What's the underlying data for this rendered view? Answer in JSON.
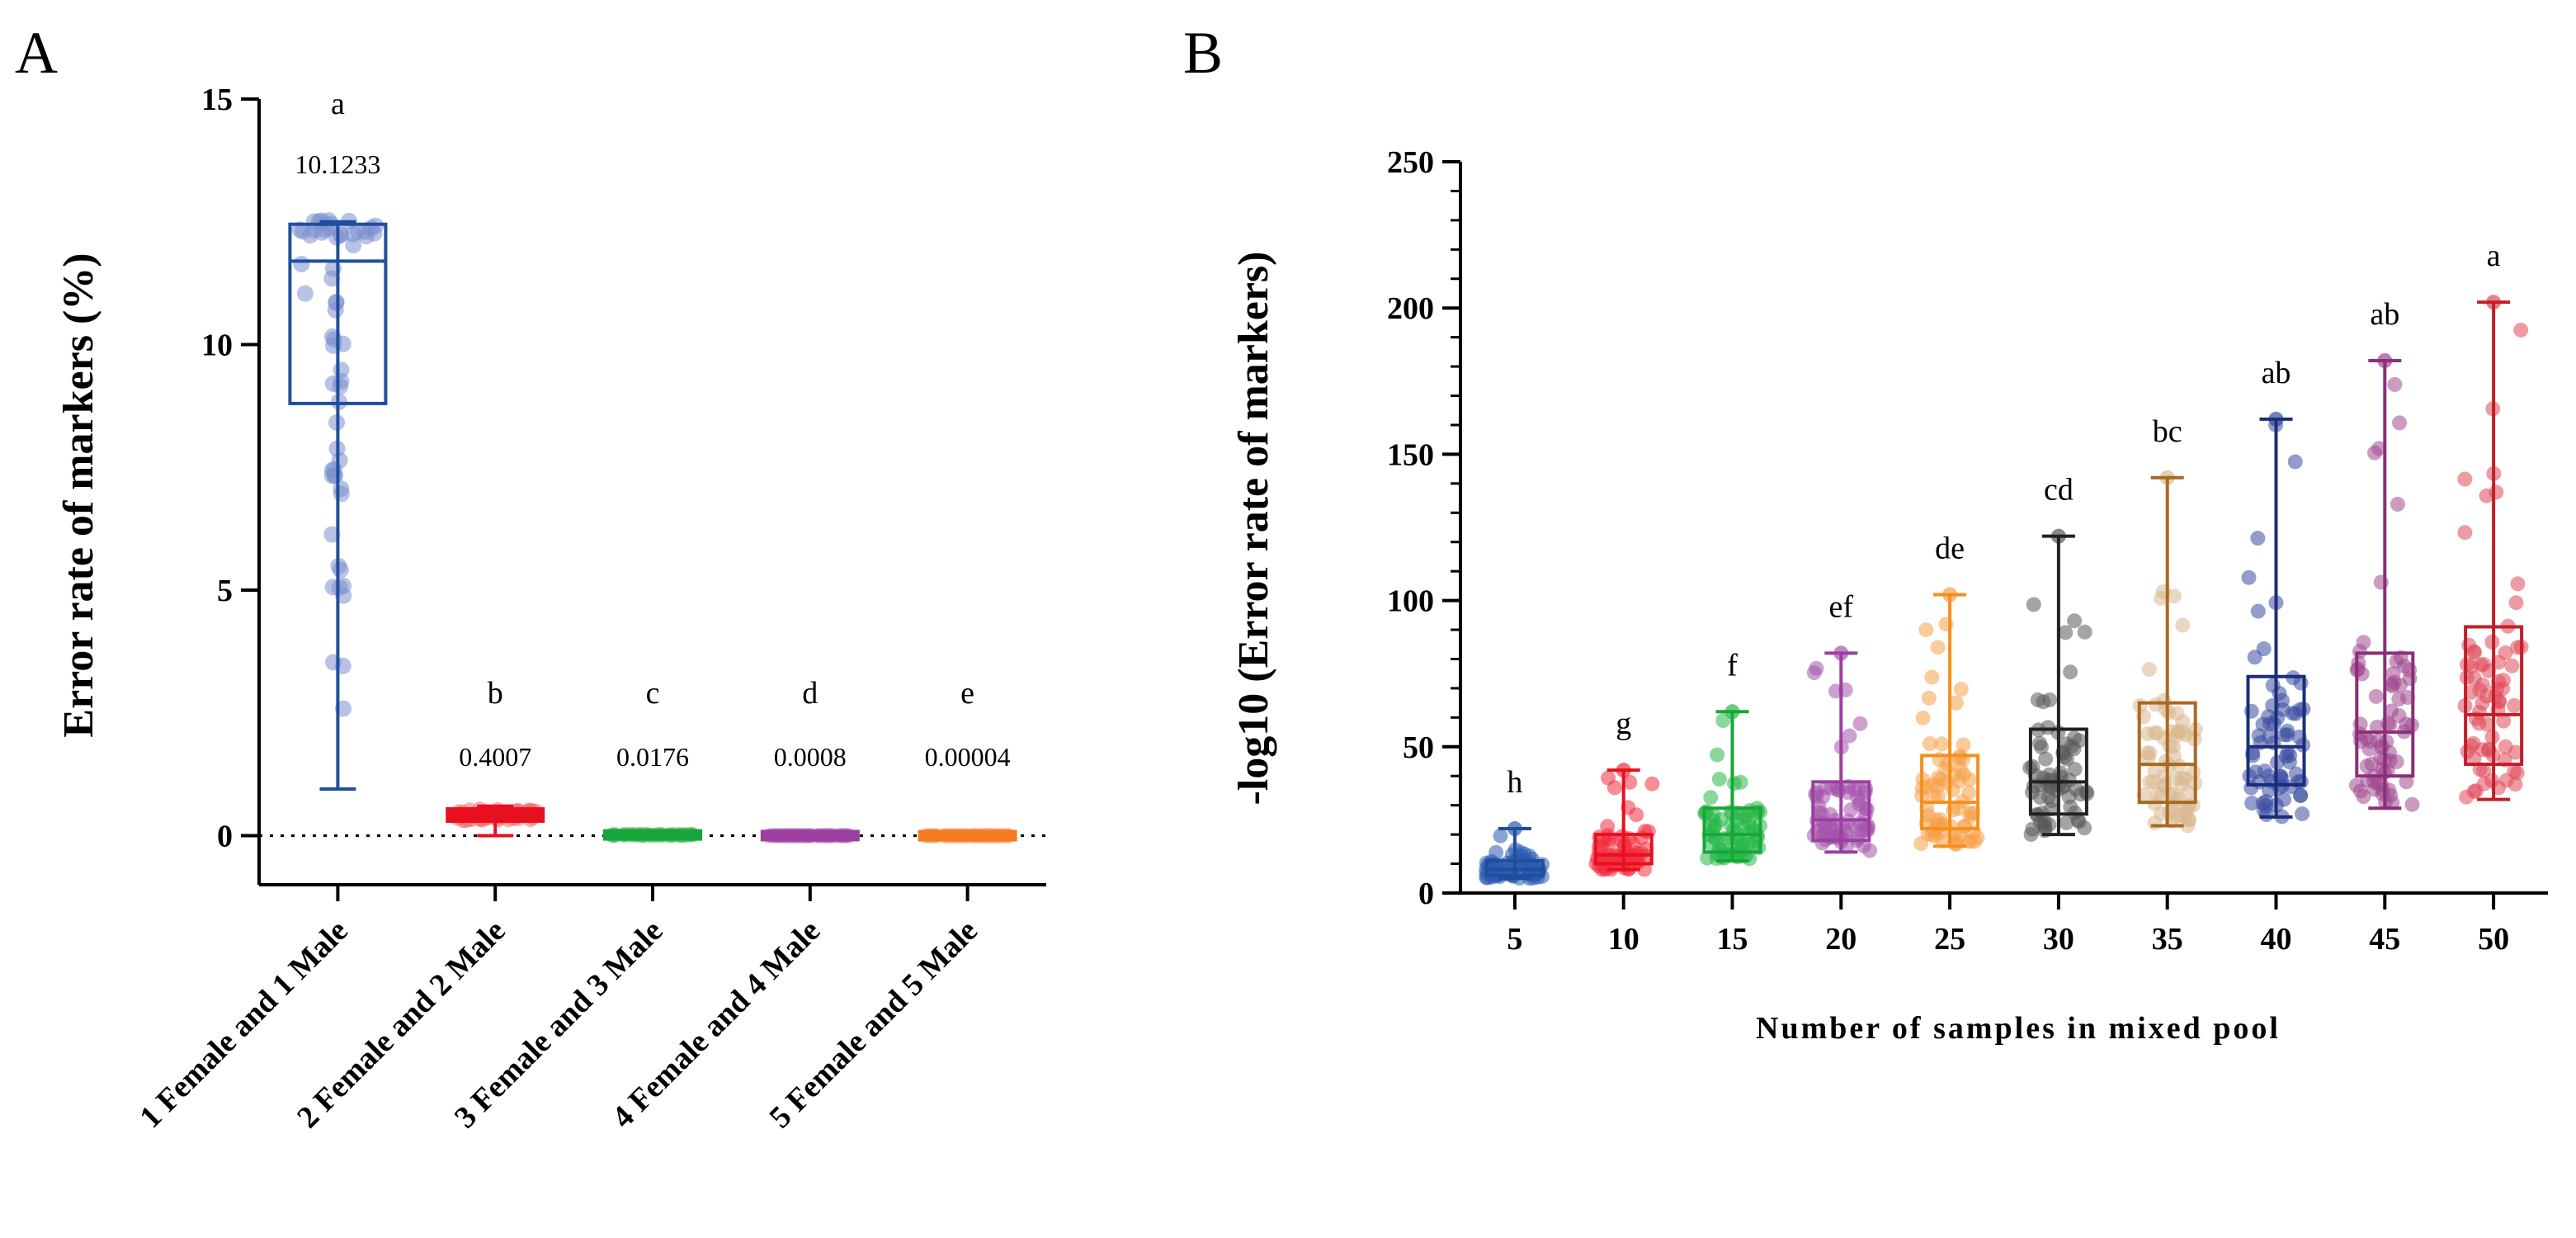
{
  "chart_data": [
    {
      "panel": "A",
      "type": "box",
      "title": "",
      "xlabel": "",
      "ylabel": "Error rate of markers (%)",
      "ylim": [
        -1,
        15
      ],
      "yticks": [
        0,
        5,
        10,
        15
      ],
      "reference_line": 0,
      "categories": [
        "1 Female and 1 Male",
        "2 Female and 2 Male",
        "3 Female and 3 Male",
        "4 Female and 4 Male",
        "5 Female and 5 Male"
      ],
      "colors": [
        "#1f4e9c",
        "#e8101e",
        "#18a63a",
        "#9b3fa0",
        "#f57c20"
      ],
      "significance": [
        "a",
        "b",
        "c",
        "d",
        "e"
      ],
      "mean_labels": [
        "10.1233",
        "0.4007",
        "0.0176",
        "0.0008",
        "0.00004"
      ],
      "boxes": [
        {
          "min": 0.95,
          "q1": 8.8,
          "median": 11.7,
          "q3": 12.45,
          "max": 12.5
        },
        {
          "min": 0.0,
          "q1": 0.3,
          "median": 0.42,
          "q3": 0.55,
          "max": 0.6
        },
        {
          "min": 0.0,
          "q1": 0.005,
          "median": 0.015,
          "q3": 0.025,
          "max": 0.06
        },
        {
          "min": 0.0,
          "q1": 0.0003,
          "median": 0.0008,
          "q3": 0.001,
          "max": 0.003
        },
        {
          "min": 0.0,
          "q1": 1e-05,
          "median": 3e-05,
          "q3": 5e-05,
          "max": 0.0001
        }
      ]
    },
    {
      "panel": "B",
      "type": "box",
      "title": "",
      "xlabel": "Number of samples in mixed pool",
      "ylabel": "-log10 (Error rate of markers)",
      "ylim": [
        0,
        250
      ],
      "yticks": [
        0,
        50,
        100,
        150,
        200,
        250
      ],
      "categories": [
        "5",
        "10",
        "15",
        "20",
        "25",
        "30",
        "35",
        "40",
        "45",
        "50"
      ],
      "colors": [
        "#1f4e9c",
        "#e8101e",
        "#18a63a",
        "#9b3fa0",
        "#f5901e",
        "#222222",
        "#a86a22",
        "#1b2d7a",
        "#8a2f78",
        "#c0202a"
      ],
      "point_colors": [
        "#2a5bb0",
        "#f03040",
        "#28b848",
        "#a456ac",
        "#f5a048",
        "#5a5a5a",
        "#d9b890",
        "#3a4ca0",
        "#a04890",
        "#e04a5a"
      ],
      "significance": [
        "h",
        "g",
        "f",
        "ef",
        "de",
        "cd",
        "bc",
        "ab",
        "ab",
        "a"
      ],
      "boxes": [
        {
          "min": 5,
          "q1": 6,
          "median": 8,
          "q3": 11,
          "max": 22
        },
        {
          "min": 8,
          "q1": 10,
          "median": 13,
          "q3": 20,
          "max": 42
        },
        {
          "min": 11,
          "q1": 14,
          "median": 20,
          "q3": 29,
          "max": 62
        },
        {
          "min": 14,
          "q1": 18,
          "median": 25,
          "q3": 38,
          "max": 82
        },
        {
          "min": 16,
          "q1": 22,
          "median": 31,
          "q3": 47,
          "max": 102
        },
        {
          "min": 20,
          "q1": 27,
          "median": 38,
          "q3": 56,
          "max": 122
        },
        {
          "min": 23,
          "q1": 31,
          "median": 44,
          "q3": 65,
          "max": 142
        },
        {
          "min": 26,
          "q1": 37,
          "median": 50,
          "q3": 74,
          "max": 162
        },
        {
          "min": 29,
          "q1": 40,
          "median": 55,
          "q3": 82,
          "max": 182
        },
        {
          "min": 32,
          "q1": 44,
          "median": 61,
          "q3": 91,
          "max": 202
        }
      ]
    }
  ]
}
